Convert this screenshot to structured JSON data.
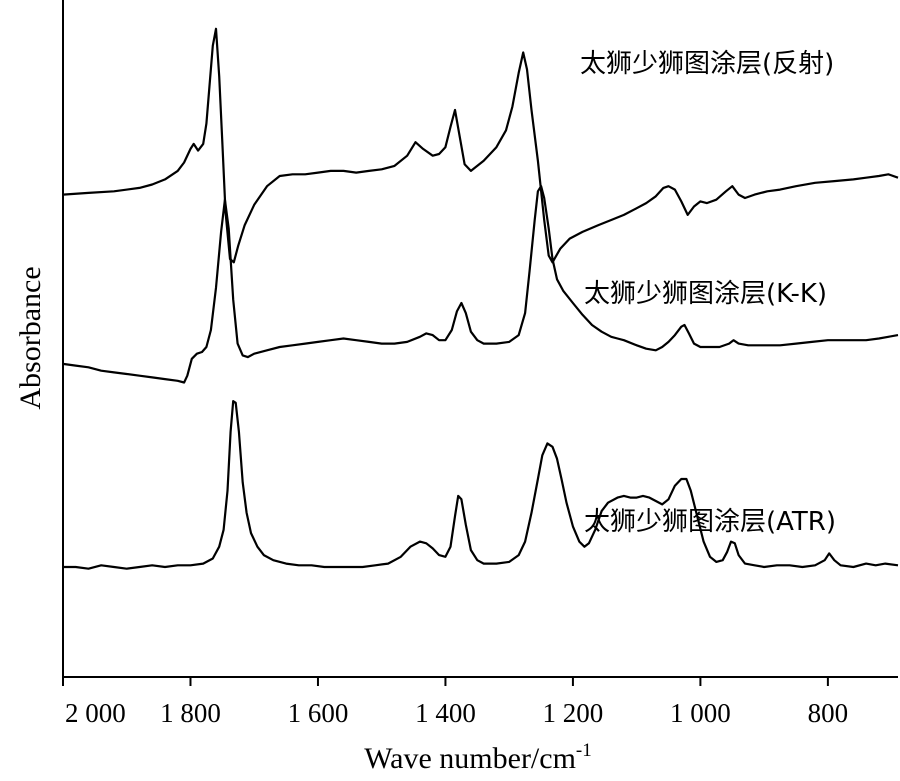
{
  "chart_data": {
    "type": "line",
    "xlabel": "Wave number/cm",
    "xlabel_sup": "-1",
    "ylabel": "Absorbance",
    "xlim": [
      2000,
      690
    ],
    "x_reversed": true,
    "x_ticks": [
      2000,
      1800,
      1600,
      1400,
      1200,
      1000,
      800
    ],
    "x_tick_labels": [
      "2 000",
      "1 800",
      "1 600",
      "1 400",
      "1 200",
      "1 000",
      "800"
    ],
    "y_units": "arbitrary (offset traces)",
    "grid": false,
    "series": [
      {
        "name": "太狮少狮图涂层(反射)",
        "offset": 2.2,
        "points": [
          [
            2000,
            0.0
          ],
          [
            1960,
            0.01
          ],
          [
            1920,
            0.02
          ],
          [
            1880,
            0.04
          ],
          [
            1860,
            0.06
          ],
          [
            1840,
            0.09
          ],
          [
            1820,
            0.14
          ],
          [
            1810,
            0.19
          ],
          [
            1800,
            0.27
          ],
          [
            1795,
            0.3
          ],
          [
            1788,
            0.26
          ],
          [
            1780,
            0.3
          ],
          [
            1775,
            0.42
          ],
          [
            1770,
            0.65
          ],
          [
            1765,
            0.88
          ],
          [
            1760,
            0.98
          ],
          [
            1755,
            0.7
          ],
          [
            1750,
            0.3
          ],
          [
            1745,
            -0.1
          ],
          [
            1738,
            -0.38
          ],
          [
            1732,
            -0.4
          ],
          [
            1725,
            -0.3
          ],
          [
            1715,
            -0.18
          ],
          [
            1700,
            -0.06
          ],
          [
            1680,
            0.05
          ],
          [
            1660,
            0.11
          ],
          [
            1640,
            0.12
          ],
          [
            1620,
            0.12
          ],
          [
            1600,
            0.13
          ],
          [
            1580,
            0.14
          ],
          [
            1560,
            0.14
          ],
          [
            1540,
            0.13
          ],
          [
            1520,
            0.14
          ],
          [
            1500,
            0.15
          ],
          [
            1480,
            0.17
          ],
          [
            1460,
            0.23
          ],
          [
            1447,
            0.31
          ],
          [
            1435,
            0.27
          ],
          [
            1420,
            0.23
          ],
          [
            1410,
            0.24
          ],
          [
            1400,
            0.28
          ],
          [
            1392,
            0.4
          ],
          [
            1385,
            0.5
          ],
          [
            1378,
            0.35
          ],
          [
            1370,
            0.18
          ],
          [
            1360,
            0.14
          ],
          [
            1340,
            0.2
          ],
          [
            1320,
            0.28
          ],
          [
            1305,
            0.38
          ],
          [
            1295,
            0.52
          ],
          [
            1285,
            0.72
          ],
          [
            1278,
            0.84
          ],
          [
            1272,
            0.74
          ],
          [
            1265,
            0.5
          ],
          [
            1255,
            0.2
          ],
          [
            1245,
            -0.15
          ],
          [
            1238,
            -0.36
          ],
          [
            1232,
            -0.4
          ],
          [
            1220,
            -0.32
          ],
          [
            1205,
            -0.26
          ],
          [
            1185,
            -0.22
          ],
          [
            1160,
            -0.18
          ],
          [
            1140,
            -0.15
          ],
          [
            1120,
            -0.12
          ],
          [
            1100,
            -0.08
          ],
          [
            1085,
            -0.05
          ],
          [
            1070,
            -0.01
          ],
          [
            1058,
            0.04
          ],
          [
            1050,
            0.05
          ],
          [
            1040,
            0.03
          ],
          [
            1030,
            -0.04
          ],
          [
            1020,
            -0.12
          ],
          [
            1010,
            -0.07
          ],
          [
            1000,
            -0.04
          ],
          [
            990,
            -0.05
          ],
          [
            975,
            -0.03
          ],
          [
            960,
            0.02
          ],
          [
            950,
            0.05
          ],
          [
            940,
            0.0
          ],
          [
            930,
            -0.02
          ],
          [
            915,
            0.0
          ],
          [
            895,
            0.02
          ],
          [
            875,
            0.03
          ],
          [
            850,
            0.05
          ],
          [
            820,
            0.07
          ],
          [
            790,
            0.08
          ],
          [
            760,
            0.09
          ],
          [
            740,
            0.1
          ],
          [
            720,
            0.11
          ],
          [
            705,
            0.12
          ],
          [
            690,
            0.1
          ]
        ]
      },
      {
        "name": "太狮少狮图涂层(K-K)",
        "offset": 1.2,
        "points": [
          [
            2000,
            0.0
          ],
          [
            1980,
            -0.01
          ],
          [
            1960,
            -0.02
          ],
          [
            1940,
            -0.04
          ],
          [
            1920,
            -0.05
          ],
          [
            1900,
            -0.06
          ],
          [
            1880,
            -0.07
          ],
          [
            1860,
            -0.08
          ],
          [
            1840,
            -0.09
          ],
          [
            1820,
            -0.1
          ],
          [
            1810,
            -0.11
          ],
          [
            1805,
            -0.07
          ],
          [
            1798,
            0.03
          ],
          [
            1790,
            0.06
          ],
          [
            1782,
            0.07
          ],
          [
            1775,
            0.1
          ],
          [
            1768,
            0.2
          ],
          [
            1760,
            0.45
          ],
          [
            1752,
            0.78
          ],
          [
            1746,
            0.97
          ],
          [
            1740,
            0.8
          ],
          [
            1733,
            0.38
          ],
          [
            1726,
            0.12
          ],
          [
            1718,
            0.05
          ],
          [
            1710,
            0.04
          ],
          [
            1700,
            0.06
          ],
          [
            1680,
            0.08
          ],
          [
            1660,
            0.1
          ],
          [
            1640,
            0.11
          ],
          [
            1620,
            0.12
          ],
          [
            1600,
            0.13
          ],
          [
            1580,
            0.14
          ],
          [
            1560,
            0.15
          ],
          [
            1540,
            0.14
          ],
          [
            1520,
            0.13
          ],
          [
            1500,
            0.12
          ],
          [
            1480,
            0.12
          ],
          [
            1460,
            0.13
          ],
          [
            1440,
            0.16
          ],
          [
            1430,
            0.18
          ],
          [
            1420,
            0.17
          ],
          [
            1410,
            0.14
          ],
          [
            1400,
            0.14
          ],
          [
            1390,
            0.2
          ],
          [
            1382,
            0.31
          ],
          [
            1375,
            0.36
          ],
          [
            1368,
            0.3
          ],
          [
            1360,
            0.19
          ],
          [
            1350,
            0.14
          ],
          [
            1340,
            0.12
          ],
          [
            1320,
            0.12
          ],
          [
            1300,
            0.13
          ],
          [
            1285,
            0.17
          ],
          [
            1275,
            0.3
          ],
          [
            1268,
            0.55
          ],
          [
            1260,
            0.85
          ],
          [
            1255,
            1.02
          ],
          [
            1250,
            1.05
          ],
          [
            1245,
            0.98
          ],
          [
            1238,
            0.8
          ],
          [
            1232,
            0.62
          ],
          [
            1225,
            0.5
          ],
          [
            1215,
            0.43
          ],
          [
            1200,
            0.36
          ],
          [
            1185,
            0.29
          ],
          [
            1170,
            0.23
          ],
          [
            1155,
            0.19
          ],
          [
            1140,
            0.16
          ],
          [
            1130,
            0.15
          ],
          [
            1120,
            0.14
          ],
          [
            1100,
            0.11
          ],
          [
            1085,
            0.09
          ],
          [
            1070,
            0.08
          ],
          [
            1060,
            0.1
          ],
          [
            1050,
            0.13
          ],
          [
            1040,
            0.17
          ],
          [
            1030,
            0.22
          ],
          [
            1025,
            0.23
          ],
          [
            1018,
            0.18
          ],
          [
            1010,
            0.12
          ],
          [
            1000,
            0.1
          ],
          [
            985,
            0.1
          ],
          [
            970,
            0.1
          ],
          [
            955,
            0.12
          ],
          [
            948,
            0.14
          ],
          [
            940,
            0.12
          ],
          [
            925,
            0.11
          ],
          [
            900,
            0.11
          ],
          [
            875,
            0.11
          ],
          [
            850,
            0.12
          ],
          [
            825,
            0.13
          ],
          [
            800,
            0.14
          ],
          [
            780,
            0.14
          ],
          [
            760,
            0.14
          ],
          [
            740,
            0.14
          ],
          [
            720,
            0.15
          ],
          [
            705,
            0.16
          ],
          [
            690,
            0.17
          ]
        ]
      },
      {
        "name": "太狮少狮图涂层(ATR)",
        "offset": 0.0,
        "points": [
          [
            2000,
            0.0
          ],
          [
            1980,
            0.0
          ],
          [
            1960,
            -0.01
          ],
          [
            1940,
            0.01
          ],
          [
            1920,
            0.0
          ],
          [
            1900,
            -0.01
          ],
          [
            1880,
            0.0
          ],
          [
            1860,
            0.01
          ],
          [
            1840,
            0.0
          ],
          [
            1820,
            0.01
          ],
          [
            1800,
            0.01
          ],
          [
            1780,
            0.02
          ],
          [
            1765,
            0.05
          ],
          [
            1755,
            0.12
          ],
          [
            1748,
            0.22
          ],
          [
            1742,
            0.45
          ],
          [
            1737,
            0.8
          ],
          [
            1733,
            0.98
          ],
          [
            1729,
            0.97
          ],
          [
            1724,
            0.8
          ],
          [
            1718,
            0.5
          ],
          [
            1712,
            0.32
          ],
          [
            1705,
            0.2
          ],
          [
            1695,
            0.12
          ],
          [
            1685,
            0.07
          ],
          [
            1670,
            0.04
          ],
          [
            1650,
            0.02
          ],
          [
            1630,
            0.01
          ],
          [
            1610,
            0.01
          ],
          [
            1590,
            0.0
          ],
          [
            1570,
            0.0
          ],
          [
            1550,
            0.0
          ],
          [
            1530,
            0.0
          ],
          [
            1510,
            0.01
          ],
          [
            1490,
            0.02
          ],
          [
            1470,
            0.06
          ],
          [
            1455,
            0.12
          ],
          [
            1440,
            0.15
          ],
          [
            1430,
            0.14
          ],
          [
            1420,
            0.11
          ],
          [
            1410,
            0.07
          ],
          [
            1400,
            0.06
          ],
          [
            1392,
            0.12
          ],
          [
            1385,
            0.3
          ],
          [
            1380,
            0.42
          ],
          [
            1375,
            0.4
          ],
          [
            1368,
            0.25
          ],
          [
            1360,
            0.1
          ],
          [
            1350,
            0.04
          ],
          [
            1340,
            0.02
          ],
          [
            1320,
            0.02
          ],
          [
            1300,
            0.03
          ],
          [
            1285,
            0.07
          ],
          [
            1275,
            0.15
          ],
          [
            1265,
            0.32
          ],
          [
            1255,
            0.52
          ],
          [
            1248,
            0.66
          ],
          [
            1240,
            0.73
          ],
          [
            1232,
            0.71
          ],
          [
            1225,
            0.64
          ],
          [
            1218,
            0.52
          ],
          [
            1210,
            0.38
          ],
          [
            1200,
            0.24
          ],
          [
            1190,
            0.15
          ],
          [
            1182,
            0.12
          ],
          [
            1175,
            0.14
          ],
          [
            1165,
            0.22
          ],
          [
            1155,
            0.33
          ],
          [
            1145,
            0.38
          ],
          [
            1130,
            0.41
          ],
          [
            1120,
            0.42
          ],
          [
            1110,
            0.41
          ],
          [
            1100,
            0.41
          ],
          [
            1090,
            0.42
          ],
          [
            1080,
            0.41
          ],
          [
            1070,
            0.39
          ],
          [
            1060,
            0.37
          ],
          [
            1050,
            0.4
          ],
          [
            1040,
            0.48
          ],
          [
            1030,
            0.52
          ],
          [
            1022,
            0.52
          ],
          [
            1015,
            0.45
          ],
          [
            1005,
            0.3
          ],
          [
            995,
            0.15
          ],
          [
            985,
            0.06
          ],
          [
            975,
            0.03
          ],
          [
            965,
            0.04
          ],
          [
            958,
            0.09
          ],
          [
            952,
            0.15
          ],
          [
            946,
            0.14
          ],
          [
            940,
            0.07
          ],
          [
            930,
            0.02
          ],
          [
            915,
            0.01
          ],
          [
            900,
            0.0
          ],
          [
            880,
            0.01
          ],
          [
            860,
            0.01
          ],
          [
            840,
            0.0
          ],
          [
            820,
            0.01
          ],
          [
            805,
            0.04
          ],
          [
            798,
            0.08
          ],
          [
            790,
            0.04
          ],
          [
            780,
            0.01
          ],
          [
            760,
            0.0
          ],
          [
            740,
            0.02
          ],
          [
            725,
            0.01
          ],
          [
            710,
            0.02
          ],
          [
            690,
            0.01
          ]
        ]
      }
    ],
    "ylim": [
      -0.65,
      3.35
    ]
  }
}
